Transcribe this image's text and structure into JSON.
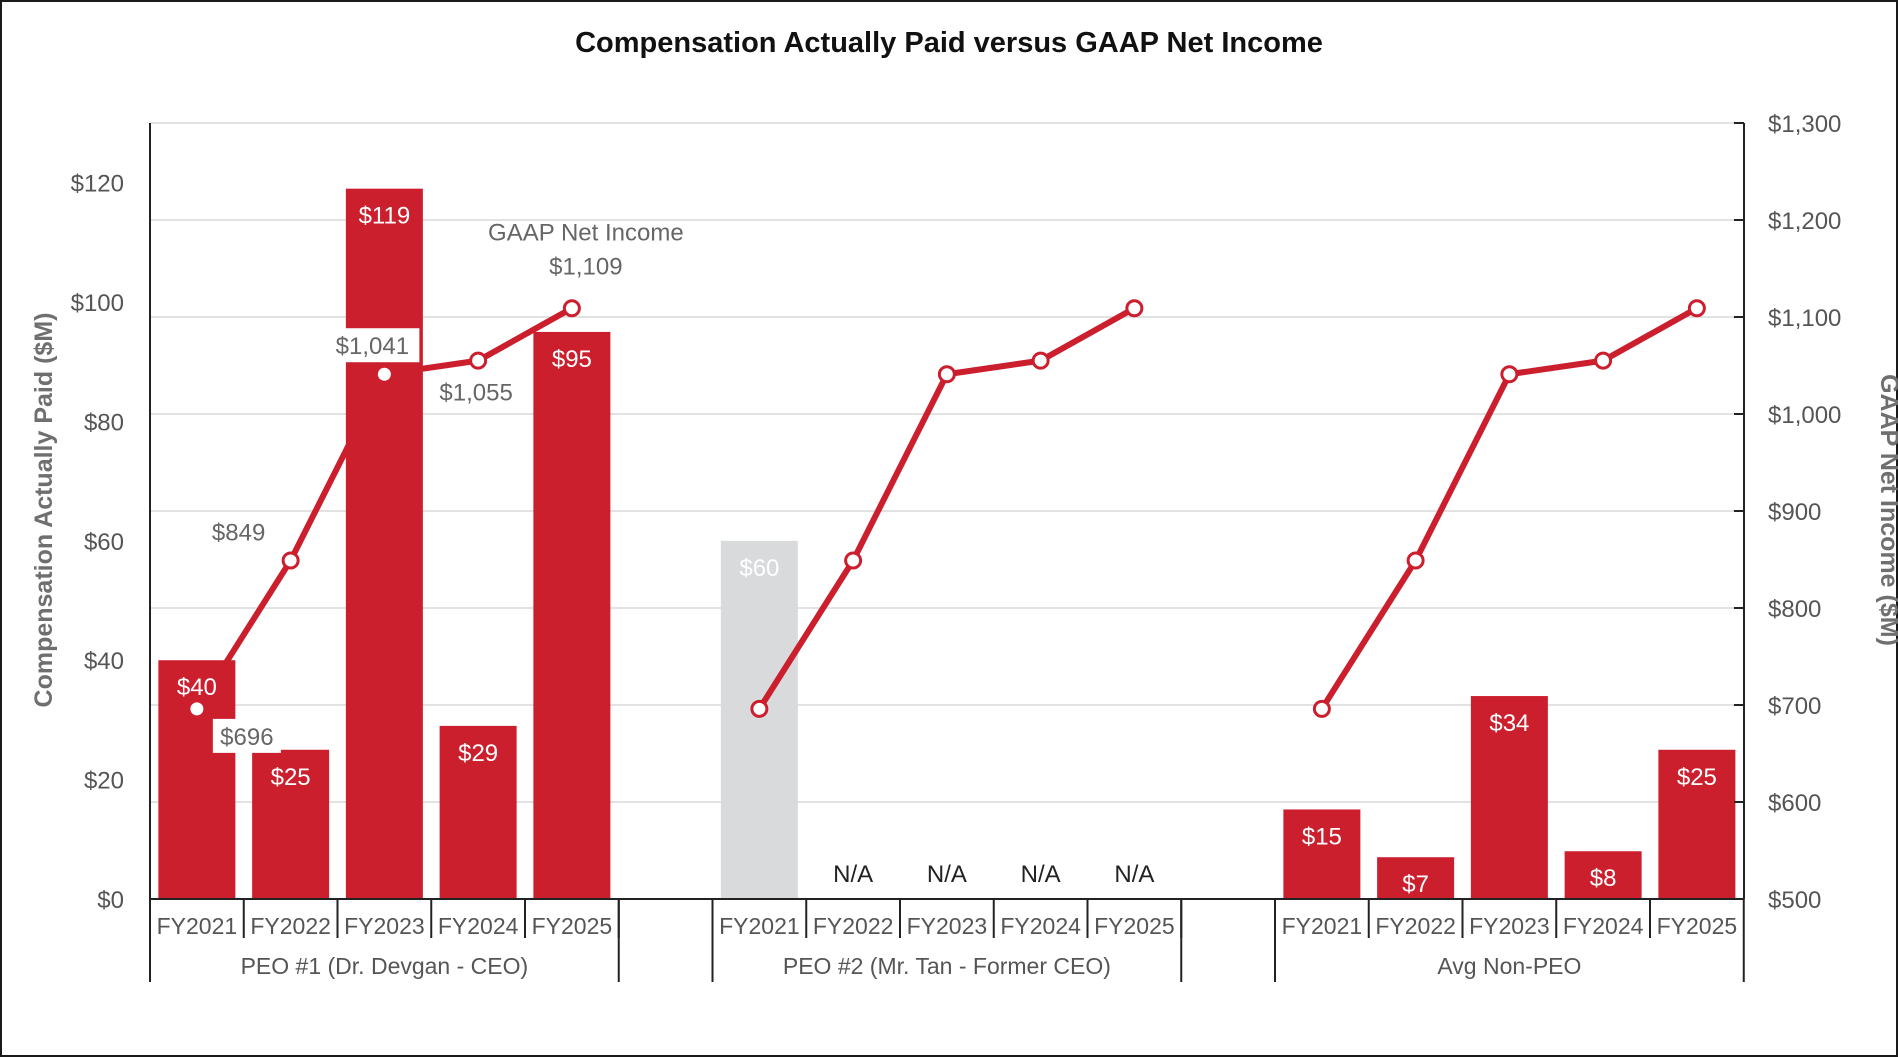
{
  "chart_data": {
    "type": "bar",
    "title": "Compensation Actually Paid versus GAAP Net Income",
    "ylabel": "Compensation Actually Paid ($M)",
    "y2label": "GAAP Net Income ($M)",
    "ylim": [
      0,
      130
    ],
    "y2lim": [
      500,
      1300
    ],
    "yticks": [
      "$0",
      "$20",
      "$40",
      "$60",
      "$80",
      "$100",
      "$120"
    ],
    "y2ticks": [
      "$500",
      "$600",
      "$700",
      "$800",
      "$900",
      "$1,000",
      "$1,100",
      "$1,200",
      "$1,300"
    ],
    "line_annotation": "GAAP Net Income",
    "bar_color": "#cc1f2e",
    "former_bar_color": "#d9dadc",
    "line_color": "#cc1f2e",
    "groups": [
      {
        "name": "PEO #1 (Dr. Devgan - CEO)",
        "categories": [
          "FY2021",
          "FY2022",
          "FY2023",
          "FY2024",
          "FY2025"
        ],
        "cap": [
          40,
          25,
          119,
          29,
          95
        ],
        "cap_labels": [
          "$40",
          "$25",
          "$119",
          "$29",
          "$95"
        ],
        "net_income": [
          696,
          849,
          1041,
          1055,
          1109
        ],
        "net_income_labels": [
          "$696",
          "$849",
          "$1,041",
          "$1,055",
          "$1,109"
        ]
      },
      {
        "name": "PEO #2 (Mr. Tan - Former CEO)",
        "categories": [
          "FY2021",
          "FY2022",
          "FY2023",
          "FY2024",
          "FY2025"
        ],
        "cap": [
          60,
          null,
          null,
          null,
          null
        ],
        "cap_labels": [
          "$60",
          "N/A",
          "N/A",
          "N/A",
          "N/A"
        ],
        "net_income": [
          696,
          849,
          1041,
          1055,
          1109
        ]
      },
      {
        "name": "Avg Non-PEO",
        "categories": [
          "FY2021",
          "FY2022",
          "FY2023",
          "FY2024",
          "FY2025"
        ],
        "cap": [
          15,
          7,
          34,
          8,
          25
        ],
        "cap_labels": [
          "$15",
          "$7",
          "$34",
          "$8",
          "$25"
        ],
        "net_income": [
          696,
          849,
          1041,
          1055,
          1109
        ]
      }
    ]
  }
}
